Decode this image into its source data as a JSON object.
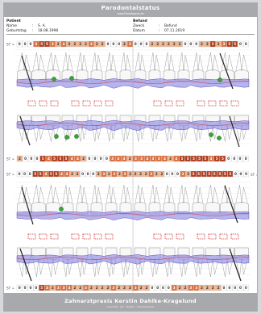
{
  "header": {
    "title": "Parodontalstatus",
    "subtitle": "www.Parodiagnos.de"
  },
  "patient": {
    "section": "Patient",
    "name_label": "Name",
    "name_value": "S. A.",
    "dob_label": "Geburtstag",
    "dob_value": "18.08.1998"
  },
  "findings": {
    "section": "Befund",
    "type_label": "Zweck",
    "type_value": "Befund",
    "date_label": "Datum",
    "date_value": "07.11.2019"
  },
  "rows": {
    "r1": {
      "label": "ST ∞",
      "values": [
        "0",
        "0",
        "0",
        "3",
        "5",
        "5",
        "3",
        "2",
        "4",
        "2",
        "2",
        "2",
        "2",
        "3",
        "2",
        "2",
        "0",
        "0",
        "0",
        "2",
        "3",
        "0",
        "0",
        "0",
        "2",
        "2",
        "2",
        "2",
        "2",
        "2",
        "0",
        "0",
        "0",
        "2",
        "2",
        "5",
        "2",
        "3",
        "5",
        "5",
        "0",
        "0"
      ]
    },
    "r2": {
      "label": "ST ∞",
      "values": [
        "2",
        "0",
        "0",
        "0",
        "5",
        "4",
        "5",
        "5",
        "5",
        "4",
        "4",
        "2",
        "0",
        "0",
        "0",
        "0",
        "3",
        "4",
        "4",
        "2",
        "3",
        "3",
        "4",
        "3",
        "3",
        "4",
        "2",
        "4",
        "5",
        "5",
        "5",
        "5",
        "5",
        "4",
        "5",
        "5",
        "0",
        "0",
        "0",
        "0"
      ]
    },
    "r3": {
      "label": "ST ∞",
      "values": [
        "0",
        "0",
        "0",
        "5",
        "5",
        "4",
        "5",
        "5",
        "4",
        "4",
        "2",
        "2",
        "0",
        "0",
        "0",
        "2",
        "3",
        "2",
        "3",
        "2",
        "3",
        "2",
        "2",
        "2",
        "2",
        "3",
        "2",
        "2",
        "0",
        "0",
        "0",
        "3",
        "2",
        "5",
        "5",
        "5",
        "5",
        "5",
        "5",
        "5",
        "5",
        "0",
        "0",
        "0"
      ]
    },
    "r3_right": "ST ∞",
    "r4": {
      "label": "ST ∞",
      "values": [
        "0",
        "0",
        "0",
        "0",
        "5",
        "3",
        "2",
        "3",
        "3",
        "4",
        "2",
        "2",
        "3",
        "2",
        "2",
        "2",
        "2",
        "3",
        "2",
        "2",
        "2",
        "3",
        "2",
        "2",
        "0",
        "0",
        "0",
        "0",
        "3",
        "2",
        "2",
        "3",
        "3",
        "2",
        "2",
        "2",
        "2",
        "0",
        "0",
        "0",
        "0",
        "0"
      ]
    }
  },
  "footer": {
    "clinic": "Zahnarztpraxis Kerstin Dahlke-Kragelund",
    "address": "Anschrift · Ort · Telefon · Praxisstempel"
  },
  "colors": {
    "dark": "#b23a1a",
    "mid": "#de6f3c",
    "light": "#f1b48f",
    "pocket": "#5a55c8",
    "gum": "#d64545",
    "bop": "#3aa43a"
  }
}
